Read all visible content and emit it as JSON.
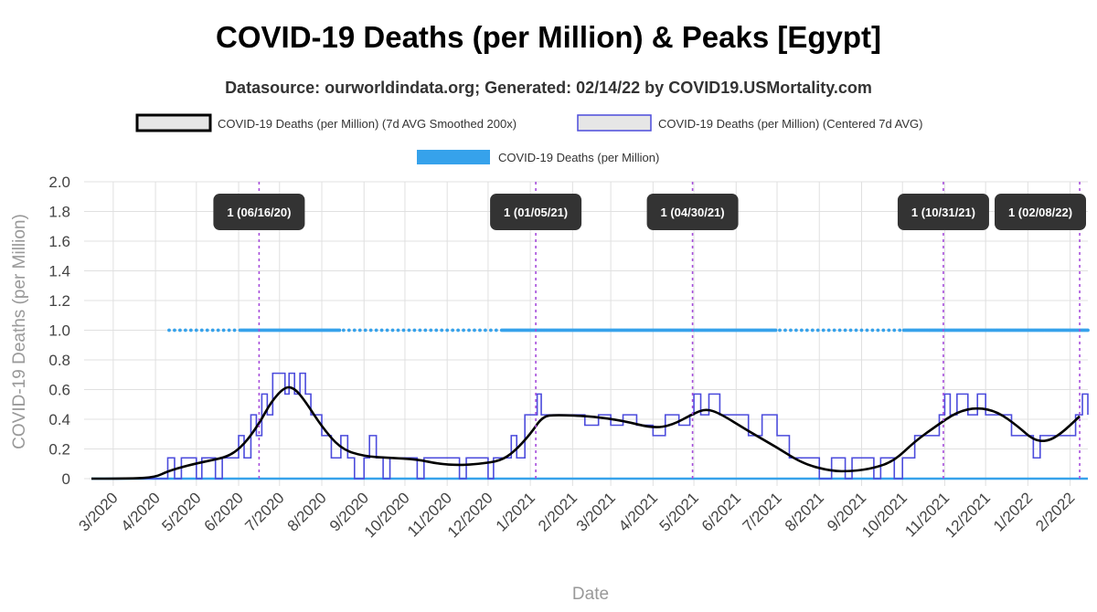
{
  "chart_data": {
    "type": "line",
    "title": "COVID-19 Deaths (per Million) & Peaks [Egypt]",
    "subtitle": "Datasource: ourworldindata.org; Generated: 02/14/22 by COVID19.USMortality.com",
    "xlabel": "Date",
    "ylabel": "COVID-19 Deaths (per Million)",
    "ylim": [
      0,
      2.0
    ],
    "y_ticks": [
      "0",
      "0.2",
      "0.4",
      "0.6",
      "0.8",
      "1.0",
      "1.2",
      "1.4",
      "1.6",
      "1.8",
      "2.0"
    ],
    "x_ticks": [
      "3/2020",
      "4/2020",
      "5/2020",
      "6/2020",
      "7/2020",
      "8/2020",
      "9/2020",
      "10/2020",
      "11/2020",
      "12/2020",
      "1/2021",
      "2/2021",
      "3/2021",
      "4/2021",
      "5/2021",
      "6/2021",
      "7/2021",
      "8/2021",
      "9/2021",
      "10/2021",
      "11/2021",
      "12/2021",
      "1/2022",
      "2/2022"
    ],
    "xlim": [
      "2020-02-14",
      "2022-02-14"
    ],
    "grid": true,
    "legend_position": "top",
    "series": [
      {
        "name": "COVID-19 Deaths (per Million) (7d AVG Smoothed 200x)",
        "color": "#000000",
        "points": [
          [
            "2020-02-14",
            0
          ],
          [
            "2020-03-15",
            0
          ],
          [
            "2020-04-01",
            0.01
          ],
          [
            "2020-04-10",
            0.05
          ],
          [
            "2020-04-25",
            0.09
          ],
          [
            "2020-05-10",
            0.12
          ],
          [
            "2020-05-25",
            0.15
          ],
          [
            "2020-06-05",
            0.23
          ],
          [
            "2020-06-16",
            0.37
          ],
          [
            "2020-06-25",
            0.52
          ],
          [
            "2020-07-05",
            0.62
          ],
          [
            "2020-07-12",
            0.61
          ],
          [
            "2020-07-20",
            0.52
          ],
          [
            "2020-08-01",
            0.35
          ],
          [
            "2020-08-15",
            0.2
          ],
          [
            "2020-09-01",
            0.15
          ],
          [
            "2020-09-20",
            0.14
          ],
          [
            "2020-10-10",
            0.13
          ],
          [
            "2020-10-25",
            0.1
          ],
          [
            "2020-11-10",
            0.09
          ],
          [
            "2020-11-25",
            0.1
          ],
          [
            "2020-12-10",
            0.12
          ],
          [
            "2020-12-20",
            0.18
          ],
          [
            "2021-01-01",
            0.3
          ],
          [
            "2021-01-10",
            0.42
          ],
          [
            "2021-01-20",
            0.43
          ],
          [
            "2021-02-15",
            0.42
          ],
          [
            "2021-03-10",
            0.39
          ],
          [
            "2021-04-01",
            0.34
          ],
          [
            "2021-04-15",
            0.36
          ],
          [
            "2021-05-01",
            0.44
          ],
          [
            "2021-05-10",
            0.47
          ],
          [
            "2021-05-20",
            0.44
          ],
          [
            "2021-06-10",
            0.32
          ],
          [
            "2021-07-01",
            0.21
          ],
          [
            "2021-07-20",
            0.1
          ],
          [
            "2021-08-10",
            0.05
          ],
          [
            "2021-08-25",
            0.05
          ],
          [
            "2021-09-10",
            0.07
          ],
          [
            "2021-09-25",
            0.12
          ],
          [
            "2021-10-10",
            0.25
          ],
          [
            "2021-10-25",
            0.35
          ],
          [
            "2021-11-10",
            0.45
          ],
          [
            "2021-11-25",
            0.48
          ],
          [
            "2021-12-10",
            0.45
          ],
          [
            "2021-12-25",
            0.35
          ],
          [
            "2022-01-05",
            0.26
          ],
          [
            "2022-01-15",
            0.25
          ],
          [
            "2022-01-25",
            0.3
          ],
          [
            "2022-02-08",
            0.42
          ]
        ]
      },
      {
        "name": "COVID-19 Deaths (per Million) (Centered 7d AVG)",
        "color": "#4b4bdc",
        "points": [
          [
            "2020-02-14",
            0
          ],
          [
            "2020-04-05",
            0
          ],
          [
            "2020-04-10",
            0.14
          ],
          [
            "2020-04-15",
            0
          ],
          [
            "2020-04-20",
            0.14
          ],
          [
            "2020-04-25",
            0.14
          ],
          [
            "2020-05-01",
            0
          ],
          [
            "2020-05-05",
            0.14
          ],
          [
            "2020-05-10",
            0.14
          ],
          [
            "2020-05-15",
            0
          ],
          [
            "2020-05-20",
            0.14
          ],
          [
            "2020-05-25",
            0.14
          ],
          [
            "2020-06-01",
            0.29
          ],
          [
            "2020-06-05",
            0.14
          ],
          [
            "2020-06-10",
            0.43
          ],
          [
            "2020-06-14",
            0.29
          ],
          [
            "2020-06-18",
            0.57
          ],
          [
            "2020-06-22",
            0.43
          ],
          [
            "2020-06-26",
            0.71
          ],
          [
            "2020-07-02",
            0.71
          ],
          [
            "2020-07-05",
            0.57
          ],
          [
            "2020-07-08",
            0.71
          ],
          [
            "2020-07-12",
            0.57
          ],
          [
            "2020-07-16",
            0.71
          ],
          [
            "2020-07-20",
            0.57
          ],
          [
            "2020-07-24",
            0.43
          ],
          [
            "2020-08-01",
            0.29
          ],
          [
            "2020-08-08",
            0.14
          ],
          [
            "2020-08-15",
            0.29
          ],
          [
            "2020-08-20",
            0.14
          ],
          [
            "2020-08-25",
            0
          ],
          [
            "2020-09-01",
            0.14
          ],
          [
            "2020-09-05",
            0.29
          ],
          [
            "2020-09-10",
            0.14
          ],
          [
            "2020-09-15",
            0
          ],
          [
            "2020-09-20",
            0.14
          ],
          [
            "2020-10-01",
            0.14
          ],
          [
            "2020-10-10",
            0
          ],
          [
            "2020-10-15",
            0.14
          ],
          [
            "2020-11-01",
            0.14
          ],
          [
            "2020-11-10",
            0
          ],
          [
            "2020-11-15",
            0.14
          ],
          [
            "2020-11-25",
            0.14
          ],
          [
            "2020-12-01",
            0
          ],
          [
            "2020-12-05",
            0.14
          ],
          [
            "2020-12-12",
            0.14
          ],
          [
            "2020-12-18",
            0.29
          ],
          [
            "2020-12-22",
            0.14
          ],
          [
            "2020-12-28",
            0.43
          ],
          [
            "2021-01-03",
            0.43
          ],
          [
            "2021-01-06",
            0.57
          ],
          [
            "2021-01-09",
            0.43
          ],
          [
            "2021-01-20",
            0.43
          ],
          [
            "2021-02-01",
            0.43
          ],
          [
            "2021-02-10",
            0.36
          ],
          [
            "2021-02-20",
            0.43
          ],
          [
            "2021-03-01",
            0.36
          ],
          [
            "2021-03-10",
            0.43
          ],
          [
            "2021-03-20",
            0.36
          ],
          [
            "2021-04-01",
            0.29
          ],
          [
            "2021-04-10",
            0.43
          ],
          [
            "2021-04-20",
            0.36
          ],
          [
            "2021-04-28",
            0.43
          ],
          [
            "2021-05-01",
            0.57
          ],
          [
            "2021-05-06",
            0.43
          ],
          [
            "2021-05-12",
            0.57
          ],
          [
            "2021-05-20",
            0.43
          ],
          [
            "2021-06-01",
            0.43
          ],
          [
            "2021-06-10",
            0.29
          ],
          [
            "2021-06-20",
            0.43
          ],
          [
            "2021-07-01",
            0.29
          ],
          [
            "2021-07-10",
            0.14
          ],
          [
            "2021-07-20",
            0.14
          ],
          [
            "2021-08-01",
            0
          ],
          [
            "2021-08-10",
            0.14
          ],
          [
            "2021-08-20",
            0
          ],
          [
            "2021-08-25",
            0.14
          ],
          [
            "2021-09-01",
            0.14
          ],
          [
            "2021-09-10",
            0
          ],
          [
            "2021-09-15",
            0.14
          ],
          [
            "2021-09-25",
            0
          ],
          [
            "2021-10-01",
            0.14
          ],
          [
            "2021-10-10",
            0.29
          ],
          [
            "2021-10-20",
            0.29
          ],
          [
            "2021-10-28",
            0.43
          ],
          [
            "2021-11-01",
            0.57
          ],
          [
            "2021-11-05",
            0.43
          ],
          [
            "2021-11-10",
            0.57
          ],
          [
            "2021-11-18",
            0.43
          ],
          [
            "2021-11-25",
            0.57
          ],
          [
            "2021-12-01",
            0.43
          ],
          [
            "2021-12-10",
            0.43
          ],
          [
            "2021-12-20",
            0.29
          ],
          [
            "2022-01-01",
            0.29
          ],
          [
            "2022-01-05",
            0.14
          ],
          [
            "2022-01-10",
            0.29
          ],
          [
            "2022-01-20",
            0.29
          ],
          [
            "2022-01-28",
            0.29
          ],
          [
            "2022-02-05",
            0.43
          ],
          [
            "2022-02-10",
            0.57
          ],
          [
            "2022-02-14",
            0.43
          ]
        ]
      },
      {
        "name": "COVID-19 Deaths (per Million)",
        "color": "#36a2eb",
        "description_values": [
          0,
          1
        ]
      }
    ],
    "peaks": [
      {
        "label": "1 (06/16/20)",
        "date": "2020-06-16"
      },
      {
        "label": "1 (01/05/21)",
        "date": "2021-01-05"
      },
      {
        "label": "1 (04/30/21)",
        "date": "2021-04-30"
      },
      {
        "label": "1 (10/31/21)",
        "date": "2021-10-31"
      },
      {
        "label": "1 (02/08/22)",
        "date": "2022-02-08"
      }
    ]
  }
}
